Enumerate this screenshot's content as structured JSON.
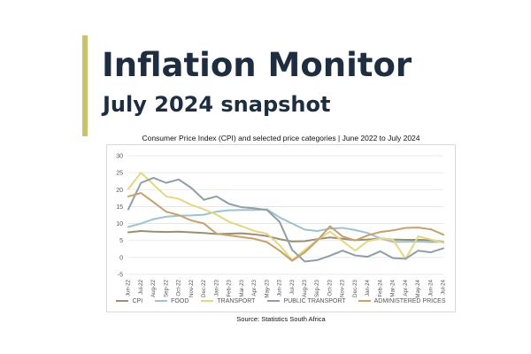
{
  "header": {
    "title": "Inflation Monitor",
    "subtitle": "July 2024 snapshot"
  },
  "chart_title": "Consumer Price Index (CPI) and selected price categories | June 2022 to July 2024",
  "source": "Source: Statistics South Africa",
  "colors": {
    "accent": "#c9c26d",
    "heading": "#1e2d40",
    "CPI": "#9b8e74",
    "FOOD": "#9fc3cd",
    "TRANSPORT": "#e2d884",
    "PUBLIC TRANSPORT": "#8f9fa6",
    "ADMINISTERED PRICES": "#c8a06c"
  },
  "chart_data": {
    "type": "line",
    "title": "Consumer Price Index (CPI) and selected price categories | June 2022 to July 2024",
    "xlabel": "",
    "ylabel": "",
    "ylim": [
      -5,
      30
    ],
    "yticks": [
      -5,
      0,
      5,
      10,
      15,
      20,
      25,
      30
    ],
    "grid": true,
    "legend_position": "bottom",
    "categories": [
      "Jun-22",
      "Jul-22",
      "Aug-22",
      "Sep-22",
      "Oct-22",
      "Nov-22",
      "Dec-22",
      "Jan-23",
      "Feb-23",
      "Mar-23",
      "Apr-23",
      "May-23",
      "Jun-23",
      "Jul-23",
      "Aug-23",
      "Sep-23",
      "Oct-23",
      "Nov-23",
      "Dec-23",
      "Jan-24",
      "Feb-24",
      "Mar-24",
      "Apr-24",
      "May-24",
      "Jun-24",
      "Jul-24"
    ],
    "x_tick_labels": [
      "Jun-22",
      "Jul-22",
      "Aug-22",
      "Sep-22",
      "Oct-22",
      "Nov-22",
      "Dec-22",
      "Jan-23",
      "Feb-23",
      "Mar-23",
      "Apr-23",
      "May-23",
      "Jun-23",
      "Jul-23",
      "Aug-23",
      "Sep-23",
      "Oct-23",
      "Nov-23",
      "Dec-23",
      "Jan-24",
      "Feb-24",
      "Mar-24",
      "Apr-24",
      "May-24",
      "Jun-24",
      "Jul-24"
    ],
    "series": [
      {
        "name": "CPI",
        "values": [
          7.4,
          7.8,
          7.6,
          7.5,
          7.6,
          7.4,
          7.2,
          6.9,
          7.0,
          7.1,
          6.8,
          6.3,
          5.4,
          4.7,
          4.8,
          5.4,
          5.9,
          5.5,
          5.1,
          5.3,
          5.6,
          5.3,
          5.2,
          5.2,
          5.1,
          4.6
        ]
      },
      {
        "name": "FOOD",
        "values": [
          9.0,
          10.0,
          11.3,
          12.0,
          12.3,
          12.4,
          12.6,
          13.5,
          13.9,
          14.0,
          14.0,
          14.2,
          11.8,
          10.0,
          8.2,
          7.8,
          8.5,
          8.7,
          8.1,
          7.2,
          5.6,
          4.6,
          4.6,
          4.7,
          4.5,
          4.6
        ]
      },
      {
        "name": "TRANSPORT",
        "values": [
          20.2,
          25.0,
          21.5,
          18.0,
          17.3,
          15.5,
          14.2,
          12.6,
          10.5,
          9.2,
          7.8,
          7.0,
          3.6,
          -0.8,
          2.2,
          5.2,
          7.6,
          4.8,
          2.0,
          4.8,
          5.6,
          5.3,
          -0.5,
          6.2,
          5.3,
          4.3
        ]
      },
      {
        "name": "PUBLIC TRANSPORT",
        "values": [
          14.2,
          22.0,
          23.5,
          22.0,
          23.0,
          20.5,
          17.0,
          18.0,
          15.8,
          14.8,
          14.5,
          14.0,
          10.5,
          2.2,
          -1.2,
          -0.8,
          0.5,
          2.0,
          0.6,
          0.2,
          1.8,
          -0.2,
          -0.4,
          2.0,
          1.5,
          2.7
        ]
      },
      {
        "name": "ADMINISTERED PRICES",
        "values": [
          18.0,
          19.0,
          16.3,
          13.5,
          12.5,
          10.9,
          10.0,
          7.0,
          6.5,
          6.0,
          5.5,
          4.5,
          2.0,
          -1.0,
          1.5,
          5.0,
          9.2,
          6.2,
          5.0,
          6.5,
          7.5,
          8.0,
          8.7,
          8.8,
          8.3,
          6.7
        ]
      }
    ]
  }
}
